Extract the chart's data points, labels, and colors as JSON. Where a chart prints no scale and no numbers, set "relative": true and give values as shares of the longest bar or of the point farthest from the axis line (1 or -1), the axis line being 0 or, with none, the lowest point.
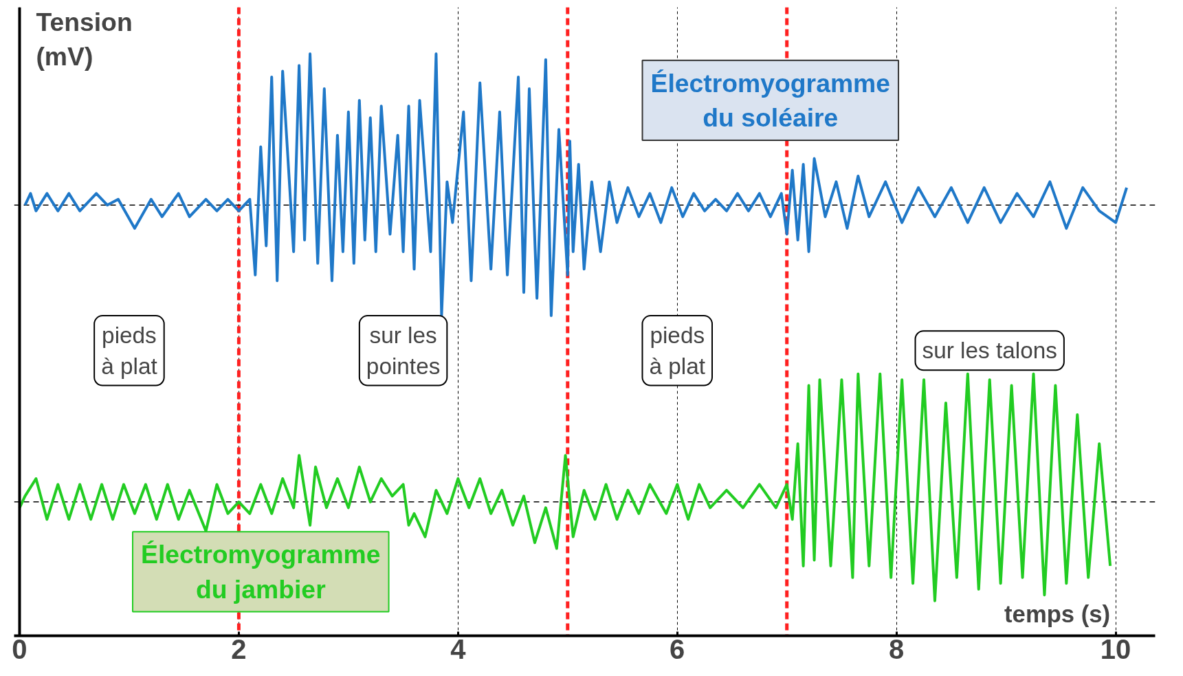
{
  "chart_data": {
    "type": "line",
    "relative": true,
    "xlabel": "temps (s)",
    "ylabel": "Tension (mV)",
    "xlim": [
      0,
      10.36
    ],
    "xticks": [
      0,
      2,
      4,
      6,
      8,
      10
    ],
    "grid": "x",
    "marker": "none",
    "line_style": "solid",
    "series": [
      {
        "name": "Électromyogramme du soléaire",
        "color": "#1f78c8",
        "x": [
          0.05,
          0.1,
          0.15,
          0.25,
          0.35,
          0.45,
          0.55,
          0.7,
          0.8,
          0.9,
          1.05,
          1.2,
          1.3,
          1.45,
          1.55,
          1.7,
          1.8,
          1.9,
          2.0,
          2.1,
          2.15,
          2.2,
          2.25,
          2.3,
          2.35,
          2.4,
          2.5,
          2.55,
          2.6,
          2.65,
          2.72,
          2.78,
          2.85,
          2.9,
          2.95,
          3.0,
          3.05,
          3.1,
          3.15,
          3.2,
          3.25,
          3.3,
          3.38,
          3.45,
          3.5,
          3.55,
          3.6,
          3.65,
          3.75,
          3.8,
          3.85,
          3.9,
          3.95,
          4.05,
          4.12,
          4.2,
          4.3,
          4.38,
          4.45,
          4.55,
          4.6,
          4.65,
          4.72,
          4.8,
          4.85,
          4.92,
          5.0,
          5.02,
          5.05,
          5.1,
          5.15,
          5.22,
          5.3,
          5.38,
          5.45,
          5.55,
          5.65,
          5.75,
          5.85,
          5.95,
          6.05,
          6.15,
          6.25,
          6.35,
          6.45,
          6.55,
          6.65,
          6.75,
          6.85,
          6.95,
          7.0,
          7.05,
          7.1,
          7.15,
          7.2,
          7.25,
          7.35,
          7.45,
          7.55,
          7.65,
          7.75,
          7.9,
          8.05,
          8.2,
          8.35,
          8.5,
          8.65,
          8.8,
          8.95,
          9.1,
          9.25,
          9.4,
          9.55,
          9.7,
          9.85,
          10.0,
          10.1
        ],
        "values": [
          0.74,
          0.76,
          0.73,
          0.76,
          0.73,
          0.76,
          0.73,
          0.76,
          0.74,
          0.75,
          0.7,
          0.75,
          0.72,
          0.76,
          0.72,
          0.75,
          0.73,
          0.75,
          0.73,
          0.75,
          0.62,
          0.84,
          0.67,
          0.96,
          0.61,
          0.97,
          0.66,
          0.98,
          0.68,
          1.0,
          0.64,
          0.94,
          0.61,
          0.86,
          0.66,
          0.9,
          0.64,
          0.92,
          0.68,
          0.89,
          0.66,
          0.91,
          0.69,
          0.86,
          0.66,
          0.91,
          0.63,
          0.92,
          0.66,
          1.0,
          0.55,
          0.78,
          0.71,
          0.9,
          0.61,
          0.95,
          0.63,
          0.9,
          0.62,
          0.96,
          0.59,
          0.94,
          0.58,
          0.99,
          0.55,
          0.87,
          0.62,
          0.85,
          0.66,
          0.81,
          0.63,
          0.78,
          0.66,
          0.78,
          0.71,
          0.77,
          0.72,
          0.76,
          0.71,
          0.77,
          0.72,
          0.76,
          0.73,
          0.75,
          0.73,
          0.76,
          0.73,
          0.76,
          0.72,
          0.76,
          0.69,
          0.8,
          0.68,
          0.81,
          0.66,
          0.82,
          0.72,
          0.78,
          0.7,
          0.79,
          0.72,
          0.78,
          0.71,
          0.77,
          0.72,
          0.77,
          0.71,
          0.77,
          0.71,
          0.76,
          0.72,
          0.78,
          0.7,
          0.77,
          0.73,
          0.71,
          0.77
        ]
      },
      {
        "name": "Électromyogramme du jambier",
        "color": "#22cc22",
        "x": [
          0,
          0.05,
          0.15,
          0.25,
          0.35,
          0.45,
          0.55,
          0.65,
          0.75,
          0.85,
          0.95,
          1.05,
          1.15,
          1.25,
          1.35,
          1.45,
          1.55,
          1.7,
          1.8,
          1.9,
          2.0,
          2.1,
          2.2,
          2.3,
          2.4,
          2.5,
          2.55,
          2.65,
          2.7,
          2.8,
          2.9,
          3.0,
          3.1,
          3.2,
          3.3,
          3.4,
          3.5,
          3.55,
          3.6,
          3.7,
          3.8,
          3.9,
          4.0,
          4.1,
          4.2,
          4.3,
          4.4,
          4.5,
          4.6,
          4.7,
          4.8,
          4.9,
          4.98,
          5.05,
          5.15,
          5.25,
          5.35,
          5.45,
          5.55,
          5.65,
          5.75,
          5.9,
          6.0,
          6.1,
          6.2,
          6.3,
          6.45,
          6.6,
          6.75,
          6.9,
          7.0,
          7.05,
          7.1,
          7.15,
          7.2,
          7.25,
          7.3,
          7.4,
          7.5,
          7.6,
          7.65,
          7.75,
          7.85,
          7.95,
          8.05,
          8.15,
          8.25,
          8.35,
          8.45,
          8.55,
          8.65,
          8.75,
          8.85,
          8.95,
          9.05,
          9.15,
          9.25,
          9.35,
          9.45,
          9.55,
          9.65,
          9.75,
          9.85,
          9.95
        ],
        "values": [
          0.22,
          0.24,
          0.27,
          0.2,
          0.26,
          0.2,
          0.26,
          0.2,
          0.26,
          0.2,
          0.26,
          0.21,
          0.26,
          0.2,
          0.26,
          0.2,
          0.25,
          0.18,
          0.26,
          0.21,
          0.23,
          0.21,
          0.26,
          0.21,
          0.27,
          0.22,
          0.31,
          0.19,
          0.29,
          0.22,
          0.27,
          0.22,
          0.29,
          0.23,
          0.27,
          0.24,
          0.26,
          0.19,
          0.21,
          0.17,
          0.25,
          0.21,
          0.27,
          0.22,
          0.27,
          0.21,
          0.25,
          0.19,
          0.24,
          0.16,
          0.22,
          0.15,
          0.31,
          0.17,
          0.25,
          0.2,
          0.26,
          0.2,
          0.25,
          0.21,
          0.26,
          0.21,
          0.26,
          0.2,
          0.26,
          0.22,
          0.25,
          0.22,
          0.26,
          0.22,
          0.26,
          0.2,
          0.33,
          0.12,
          0.43,
          0.13,
          0.44,
          0.12,
          0.44,
          0.1,
          0.45,
          0.12,
          0.45,
          0.1,
          0.44,
          0.09,
          0.44,
          0.06,
          0.4,
          0.1,
          0.45,
          0.08,
          0.44,
          0.09,
          0.43,
          0.1,
          0.45,
          0.07,
          0.43,
          0.09,
          0.38,
          0.1,
          0.33,
          0.12
        ]
      }
    ],
    "ref_lines": [
      {
        "axis": "x",
        "value": 2,
        "color": "#ff2020",
        "line_style": "dashed"
      },
      {
        "axis": "x",
        "value": 5,
        "color": "#ff2020",
        "line_style": "dashed"
      },
      {
        "axis": "x",
        "value": 7,
        "color": "#ff2020",
        "line_style": "dashed"
      },
      {
        "axis": "y",
        "value": 0.74,
        "color": "#000000",
        "line_style": "dashed"
      },
      {
        "axis": "y",
        "value": 0.23,
        "color": "#000000",
        "line_style": "dashed"
      }
    ],
    "annotations": [
      "pieds\nà plat",
      "sur les\npointes",
      "pieds\nà plat",
      "sur les talons"
    ]
  }
}
